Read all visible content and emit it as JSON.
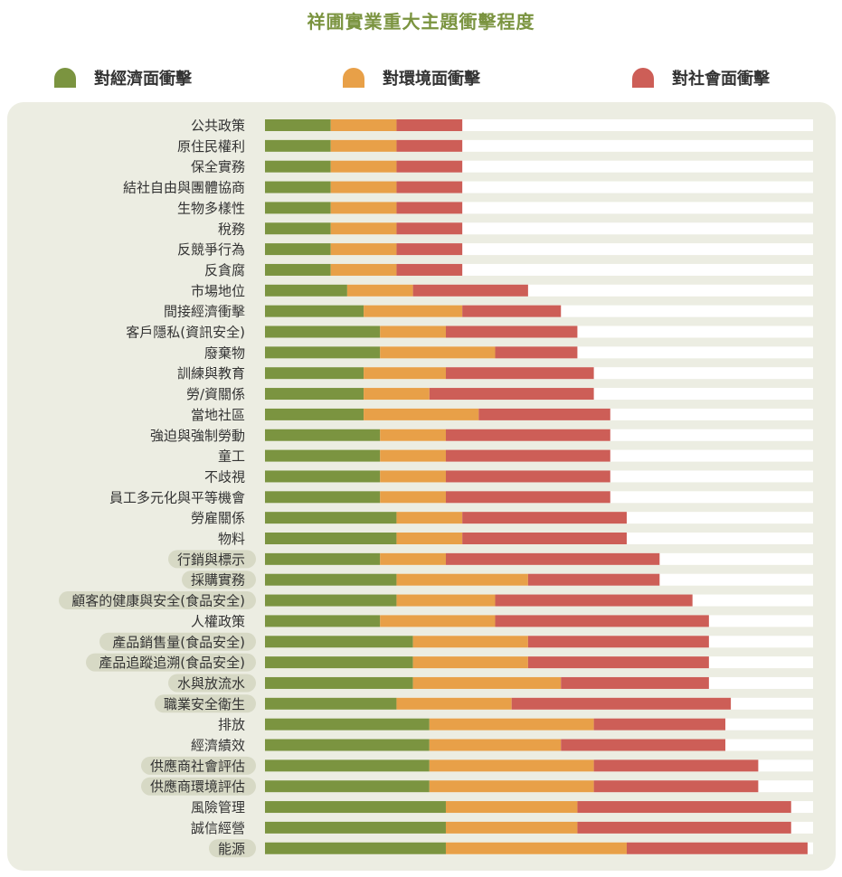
{
  "chart_data": {
    "type": "bar",
    "stacked": true,
    "orientation": "horizontal",
    "title": "祥圃實業重大主題衝擊程度",
    "xlim": [
      0,
      10
    ],
    "legend_position": "top",
    "series": [
      {
        "name": "對經濟面衝擊",
        "color": "#7b9440",
        "values": [
          1.2,
          1.2,
          1.2,
          1.2,
          1.2,
          1.2,
          1.2,
          1.2,
          1.5,
          1.8,
          2.1,
          2.1,
          1.8,
          1.8,
          1.8,
          2.1,
          2.1,
          2.1,
          2.1,
          2.4,
          2.4,
          2.1,
          2.4,
          2.4,
          2.1,
          2.7,
          2.7,
          2.7,
          2.4,
          3.0,
          3.0,
          3.0,
          3.0,
          3.3,
          3.3,
          3.3
        ]
      },
      {
        "name": "對環境面衝擊",
        "color": "#e8a048",
        "values": [
          1.2,
          1.2,
          1.2,
          1.2,
          1.2,
          1.2,
          1.2,
          1.2,
          1.2,
          1.8,
          1.2,
          2.1,
          1.5,
          1.2,
          2.1,
          1.2,
          1.2,
          1.2,
          1.2,
          1.2,
          1.2,
          1.2,
          2.4,
          1.8,
          2.1,
          2.1,
          2.1,
          2.7,
          2.1,
          3.0,
          2.4,
          3.0,
          3.0,
          2.4,
          2.4,
          3.3
        ]
      },
      {
        "name": "對社會面衝擊",
        "color": "#cd5e57",
        "values": [
          1.2,
          1.2,
          1.2,
          1.2,
          1.2,
          1.2,
          1.2,
          1.2,
          2.1,
          1.8,
          2.4,
          1.5,
          2.7,
          3.0,
          2.4,
          3.0,
          3.0,
          3.0,
          3.0,
          3.0,
          3.0,
          3.9,
          2.4,
          3.6,
          3.9,
          3.3,
          3.3,
          2.7,
          4.0,
          2.4,
          3.0,
          3.0,
          3.0,
          3.9,
          3.9,
          3.3
        ]
      }
    ],
    "categories": [
      {
        "label": "公共政策",
        "highlight": false
      },
      {
        "label": "原住民權利",
        "highlight": false
      },
      {
        "label": "保全實務",
        "highlight": false
      },
      {
        "label": "結社自由與團體協商",
        "highlight": false
      },
      {
        "label": "生物多樣性",
        "highlight": false
      },
      {
        "label": "稅務",
        "highlight": false
      },
      {
        "label": "反競爭行為",
        "highlight": false
      },
      {
        "label": "反貪腐",
        "highlight": false
      },
      {
        "label": "市場地位",
        "highlight": false
      },
      {
        "label": "間接經濟衝擊",
        "highlight": false
      },
      {
        "label": "客戶隱私(資訊安全)",
        "highlight": false
      },
      {
        "label": "廢棄物",
        "highlight": false
      },
      {
        "label": "訓練與教育",
        "highlight": false
      },
      {
        "label": "勞/資關係",
        "highlight": false
      },
      {
        "label": "當地社區",
        "highlight": false
      },
      {
        "label": "強迫與強制勞動",
        "highlight": false
      },
      {
        "label": "童工",
        "highlight": false
      },
      {
        "label": "不歧視",
        "highlight": false
      },
      {
        "label": "員工多元化與平等機會",
        "highlight": false
      },
      {
        "label": "勞雇關係",
        "highlight": false
      },
      {
        "label": "物料",
        "highlight": false
      },
      {
        "label": "行銷與標示",
        "highlight": true
      },
      {
        "label": "採購實務",
        "highlight": true
      },
      {
        "label": "顧客的健康與安全(食品安全)",
        "highlight": true
      },
      {
        "label": "人權政策",
        "highlight": false
      },
      {
        "label": "產品銷售量(食品安全)",
        "highlight": true
      },
      {
        "label": "產品追蹤追溯(食品安全)",
        "highlight": true
      },
      {
        "label": "水與放流水",
        "highlight": true
      },
      {
        "label": "職業安全衛生",
        "highlight": true
      },
      {
        "label": "排放",
        "highlight": false
      },
      {
        "label": "經濟績效",
        "highlight": false
      },
      {
        "label": "供應商社會評估",
        "highlight": true
      },
      {
        "label": "供應商環境評估",
        "highlight": true
      },
      {
        "label": "風險管理",
        "highlight": false
      },
      {
        "label": "誠信經營",
        "highlight": false
      },
      {
        "label": "能源",
        "highlight": true
      }
    ],
    "track_color": "#ffffff",
    "highlight_color": "#d7d9c5"
  }
}
